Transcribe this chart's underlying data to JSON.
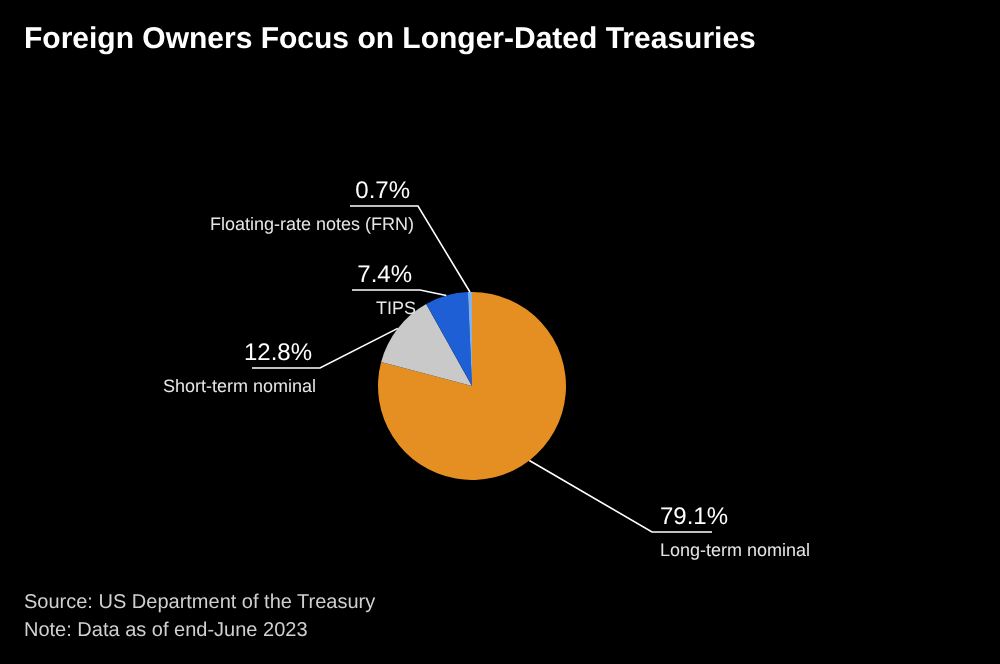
{
  "chart_data": {
    "type": "pie",
    "title": "Foreign Owners Focus on Longer-Dated Treasuries",
    "categories": [
      "Long-term nominal",
      "Short-term nominal",
      "TIPS",
      "Floating-rate notes (FRN)"
    ],
    "values": [
      79.1,
      12.8,
      7.4,
      0.7
    ],
    "colors": [
      "#e58f23",
      "#c9c9c9",
      "#1f5fd6",
      "#7fb2f0"
    ],
    "value_labels": [
      "79.1%",
      "12.8%",
      "7.4%",
      "0.7%"
    ],
    "annotations": [
      "Source: US Department of the Treasury",
      "Note: Data as of end-June 2023"
    ]
  }
}
